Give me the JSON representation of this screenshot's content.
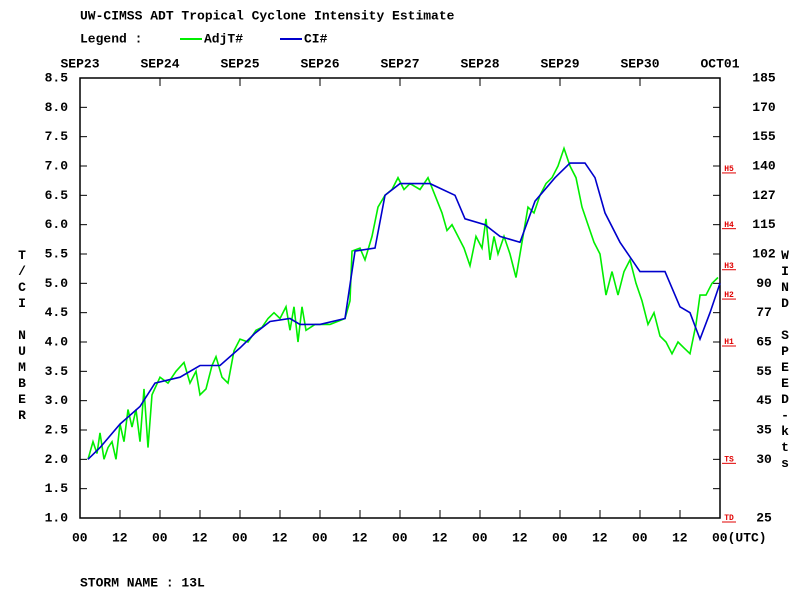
{
  "chart_data": {
    "type": "line",
    "title": "UW-CIMSS ADT Tropical Cyclone Intensity Estimate",
    "legend_label": "Legend :",
    "ylabel": "T/CI NUMBER",
    "y2label": "WIND SPEED-kts",
    "footer": "STORM NAME : 13L",
    "xlim": [
      0,
      192
    ],
    "ylim": [
      1.0,
      8.5
    ],
    "yticks": [
      {
        "value": 1.0,
        "label": "1.0"
      },
      {
        "value": 1.5,
        "label": "1.5"
      },
      {
        "value": 2.0,
        "label": "2.0"
      },
      {
        "value": 2.5,
        "label": "2.5"
      },
      {
        "value": 3.0,
        "label": "3.0"
      },
      {
        "value": 3.5,
        "label": "3.5"
      },
      {
        "value": 4.0,
        "label": "4.0"
      },
      {
        "value": 4.5,
        "label": "4.5"
      },
      {
        "value": 5.0,
        "label": "5.0"
      },
      {
        "value": 5.5,
        "label": "5.5"
      },
      {
        "value": 6.0,
        "label": "6.0"
      },
      {
        "value": 6.5,
        "label": "6.5"
      },
      {
        "value": 7.0,
        "label": "7.0"
      },
      {
        "value": 7.5,
        "label": "7.5"
      },
      {
        "value": 8.0,
        "label": "8.0"
      },
      {
        "value": 8.5,
        "label": "8.5"
      }
    ],
    "date_ticks": [
      {
        "value": 0,
        "label": "SEP23"
      },
      {
        "value": 24,
        "label": "SEP24"
      },
      {
        "value": 48,
        "label": "SEP25"
      },
      {
        "value": 72,
        "label": "SEP26"
      },
      {
        "value": 96,
        "label": "SEP27"
      },
      {
        "value": 120,
        "label": "SEP28"
      },
      {
        "value": 144,
        "label": "SEP29"
      },
      {
        "value": 168,
        "label": "SEP30"
      },
      {
        "value": 192,
        "label": "OCT01"
      }
    ],
    "xticks": [
      {
        "value": 0,
        "label": "00"
      },
      {
        "value": 12,
        "label": "12"
      },
      {
        "value": 24,
        "label": "00"
      },
      {
        "value": 36,
        "label": "12"
      },
      {
        "value": 48,
        "label": "00"
      },
      {
        "value": 60,
        "label": "12"
      },
      {
        "value": 72,
        "label": "00"
      },
      {
        "value": 84,
        "label": "12"
      },
      {
        "value": 96,
        "label": "00"
      },
      {
        "value": 108,
        "label": "12"
      },
      {
        "value": 120,
        "label": "00"
      },
      {
        "value": 132,
        "label": "12"
      },
      {
        "value": 144,
        "label": "00"
      },
      {
        "value": 156,
        "label": "12"
      },
      {
        "value": 168,
        "label": "00"
      },
      {
        "value": 180,
        "label": "12"
      },
      {
        "value": 192,
        "label": "00(UTC)"
      }
    ],
    "wind_scale": {
      "ci": [
        8.5,
        8.0,
        7.5,
        7.0,
        6.5,
        6.0,
        5.5,
        5.0,
        4.5,
        4.0,
        3.5,
        3.0,
        2.5,
        2.0,
        1.0
      ],
      "kts": [
        185,
        170,
        155,
        140,
        127,
        115,
        102,
        90,
        77,
        65,
        55,
        45,
        35,
        30,
        25
      ]
    },
    "categories_marks": {
      "ci": [
        1.0,
        2.0,
        4.0,
        4.8,
        5.3,
        6.0,
        6.95
      ],
      "labels": [
        "TD",
        "TS",
        "H1",
        "H2",
        "H3",
        "H4",
        "H5"
      ]
    },
    "series": [
      {
        "name": "AdjT#",
        "color": "#00ee00",
        "x": [
          2.4,
          3.9,
          5.1,
          6,
          7.2,
          8.4,
          9.6,
          10.8,
          12,
          13.2,
          14.4,
          15.6,
          16.8,
          18,
          19.2,
          20.4,
          21.6,
          22.8,
          24,
          26.4,
          28.8,
          31.2,
          33,
          34.8,
          36,
          37.8,
          39.6,
          40.8,
          42.6,
          44.4,
          46.2,
          48,
          50.4,
          52.8,
          54.6,
          56.4,
          58.2,
          60,
          61.8,
          63,
          64.2,
          65.4,
          66.6,
          67.8,
          70.5,
          75,
          79.5,
          81,
          81.6,
          84,
          85.5,
          87.6,
          89.4,
          91.5,
          93.6,
          95.4,
          97.2,
          99,
          102,
          104.4,
          106.5,
          108.6,
          110.1,
          111.6,
          113.4,
          115.2,
          117,
          118.8,
          120.6,
          121.8,
          123,
          124.2,
          125.4,
          127.2,
          129,
          130.8,
          132.6,
          134.4,
          136.2,
          138,
          139.8,
          141.6,
          143.4,
          145.2,
          147,
          148.8,
          150.6,
          152.4,
          154.2,
          156,
          157.8,
          159.6,
          161.4,
          163.2,
          165,
          166.8,
          168.6,
          170.4,
          172.2,
          174,
          175.8,
          177.6,
          179.4,
          181.2,
          183,
          184.8,
          186,
          187.8,
          189.6,
          191.4
        ],
        "values": [
          2.0,
          2.3,
          2.1,
          2.45,
          2.0,
          2.2,
          2.3,
          2.0,
          2.6,
          2.3,
          2.85,
          2.55,
          2.85,
          2.3,
          3.2,
          2.2,
          3.1,
          3.25,
          3.4,
          3.3,
          3.5,
          3.65,
          3.3,
          3.5,
          3.1,
          3.2,
          3.6,
          3.75,
          3.4,
          3.3,
          3.85,
          4.05,
          4.0,
          4.2,
          4.25,
          4.4,
          4.5,
          4.4,
          4.6,
          4.2,
          4.6,
          4.0,
          4.6,
          4.2,
          4.3,
          4.3,
          4.4,
          4.7,
          5.55,
          5.6,
          5.4,
          5.8,
          6.3,
          6.5,
          6.6,
          6.8,
          6.6,
          6.7,
          6.6,
          6.8,
          6.5,
          6.2,
          5.9,
          6.0,
          5.8,
          5.6,
          5.3,
          5.8,
          5.6,
          6.1,
          5.4,
          5.8,
          5.5,
          5.8,
          5.5,
          5.1,
          5.7,
          6.3,
          6.2,
          6.5,
          6.7,
          6.8,
          7.0,
          7.3,
          7.0,
          6.8,
          6.3,
          6.0,
          5.7,
          5.5,
          4.8,
          5.2,
          4.8,
          5.2,
          5.4,
          5.0,
          4.7,
          4.3,
          4.5,
          4.1,
          4.0,
          3.8,
          4.0,
          3.9,
          3.8,
          4.3,
          4.8,
          4.8,
          5.0,
          5.1
        ]
      },
      {
        "name": "CI#",
        "color": "#0000cc",
        "x": [
          2.4,
          6,
          12,
          18,
          22.5,
          30,
          36,
          42,
          48,
          52.5,
          57,
          63,
          66,
          72,
          79.5,
          82.5,
          88.5,
          91.5,
          96,
          105,
          112.5,
          115.5,
          121.5,
          126,
          132,
          136.5,
          142.5,
          147,
          151.5,
          154.5,
          157.5,
          162,
          168,
          175.5,
          180,
          183,
          186,
          189,
          192
        ],
        "values": [
          2.0,
          2.2,
          2.6,
          2.9,
          3.3,
          3.4,
          3.6,
          3.6,
          3.9,
          4.15,
          4.35,
          4.4,
          4.3,
          4.3,
          4.4,
          5.55,
          5.6,
          6.5,
          6.7,
          6.7,
          6.5,
          6.1,
          6.0,
          5.8,
          5.7,
          6.4,
          6.8,
          7.05,
          7.05,
          6.8,
          6.2,
          5.7,
          5.2,
          5.2,
          4.6,
          4.5,
          4.05,
          4.5,
          5.0
        ]
      }
    ]
  }
}
